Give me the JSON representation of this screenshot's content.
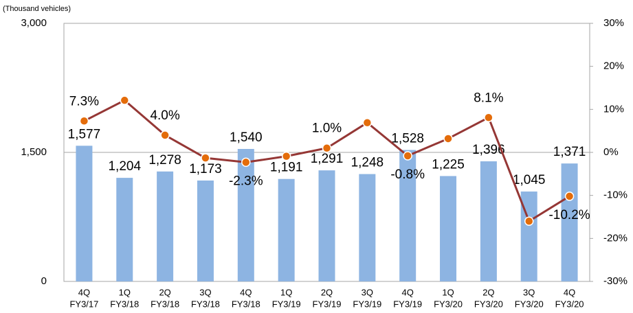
{
  "chart_data": {
    "type": "bar_line",
    "y_label": "(Thousand vehicles)",
    "categories": [
      [
        "4Q",
        "FY3/17"
      ],
      [
        "1Q",
        "FY3/18"
      ],
      [
        "2Q",
        "FY3/18"
      ],
      [
        "3Q",
        "FY3/18"
      ],
      [
        "4Q",
        "FY3/18"
      ],
      [
        "1Q",
        "FY3/19"
      ],
      [
        "2Q",
        "FY3/19"
      ],
      [
        "3Q",
        "FY3/19"
      ],
      [
        "4Q",
        "FY3/19"
      ],
      [
        "1Q",
        "FY3/20"
      ],
      [
        "2Q",
        "FY3/20"
      ],
      [
        "3Q",
        "FY3/20"
      ],
      [
        "4Q",
        "FY3/20"
      ]
    ],
    "series": [
      {
        "type": "bar",
        "color": "#8db4e2",
        "values": [
          1577,
          1204,
          1278,
          1173,
          1540,
          1191,
          1291,
          1248,
          1528,
          1225,
          1396,
          1045,
          1371
        ],
        "value_labels": [
          "1,577",
          "1,204",
          "1,278",
          "1,173",
          "1,540",
          "1,191",
          "1,291",
          "1,248",
          "1,528",
          "1,225",
          "1,396",
          "1,045",
          "1,371"
        ]
      },
      {
        "type": "line",
        "axis": "y2",
        "color": "#953735",
        "marker_color": "#e46c0a",
        "values": [
          7.3,
          12.1,
          4.0,
          -1.3,
          -2.3,
          -0.9,
          1.0,
          6.9,
          -0.8,
          3.2,
          8.1,
          -16.0,
          -10.2
        ],
        "value_labels": [
          "7.3%",
          null,
          "4.0%",
          null,
          "-2.3%",
          null,
          "1.0%",
          null,
          "-0.8%",
          null,
          "8.1%",
          null,
          "-10.2%"
        ]
      }
    ],
    "ylim": [
      0,
      3000
    ],
    "yticks": [
      0,
      {
        "value": 1500,
        "label": "1,500"
      },
      {
        "value": 3000,
        "label": "3,000"
      }
    ],
    "y2lim": [
      -30,
      30
    ],
    "y2ticks": [
      {
        "value": -30,
        "label": "-30%"
      },
      {
        "value": -20,
        "label": "-20%"
      },
      {
        "value": -10,
        "label": "-10%"
      },
      {
        "value": 0,
        "label": "0%"
      },
      {
        "value": 10,
        "label": "10%"
      },
      {
        "value": 20,
        "label": "20%"
      },
      {
        "value": 30,
        "label": "30%"
      }
    ],
    "grid": true
  }
}
